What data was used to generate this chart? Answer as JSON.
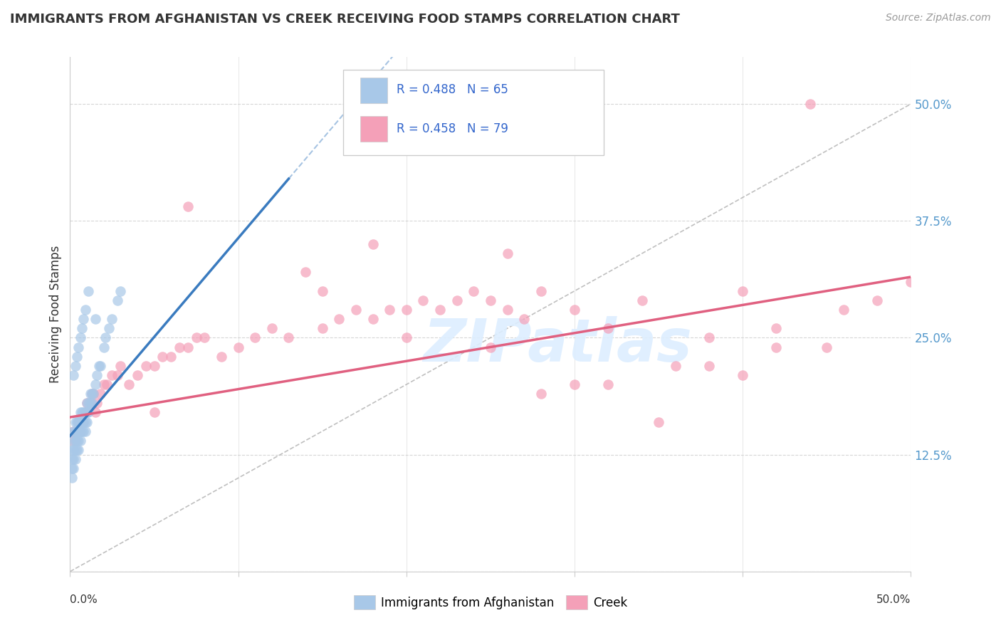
{
  "title": "IMMIGRANTS FROM AFGHANISTAN VS CREEK RECEIVING FOOD STAMPS CORRELATION CHART",
  "source": "Source: ZipAtlas.com",
  "ylabel": "Receiving Food Stamps",
  "yticks": [
    0.0,
    0.125,
    0.25,
    0.375,
    0.5
  ],
  "ytick_labels": [
    "",
    "12.5%",
    "25.0%",
    "37.5%",
    "50.0%"
  ],
  "xlim": [
    0.0,
    0.5
  ],
  "ylim": [
    0.0,
    0.55
  ],
  "blue_color": "#a8c8e8",
  "pink_color": "#f4a0b8",
  "blue_line_color": "#3a7bbf",
  "pink_line_color": "#e06080",
  "watermark_color": "#d8e8f0",
  "grid_color": "#cccccc",
  "tick_label_color": "#5599cc",
  "blue_x": [
    0.001,
    0.001,
    0.001,
    0.001,
    0.002,
    0.002,
    0.002,
    0.002,
    0.002,
    0.003,
    0.003,
    0.003,
    0.003,
    0.003,
    0.004,
    0.004,
    0.004,
    0.004,
    0.005,
    0.005,
    0.005,
    0.005,
    0.006,
    0.006,
    0.006,
    0.006,
    0.007,
    0.007,
    0.007,
    0.008,
    0.008,
    0.008,
    0.009,
    0.009,
    0.009,
    0.01,
    0.01,
    0.01,
    0.011,
    0.011,
    0.012,
    0.012,
    0.013,
    0.013,
    0.014,
    0.015,
    0.016,
    0.017,
    0.018,
    0.02,
    0.021,
    0.023,
    0.025,
    0.028,
    0.03,
    0.002,
    0.003,
    0.004,
    0.005,
    0.006,
    0.007,
    0.008,
    0.009,
    0.011,
    0.015
  ],
  "blue_y": [
    0.1,
    0.11,
    0.12,
    0.13,
    0.11,
    0.12,
    0.13,
    0.14,
    0.15,
    0.12,
    0.13,
    0.14,
    0.15,
    0.16,
    0.13,
    0.14,
    0.15,
    0.16,
    0.13,
    0.14,
    0.15,
    0.16,
    0.14,
    0.15,
    0.16,
    0.17,
    0.15,
    0.16,
    0.17,
    0.15,
    0.16,
    0.17,
    0.15,
    0.16,
    0.17,
    0.16,
    0.17,
    0.18,
    0.17,
    0.18,
    0.18,
    0.19,
    0.18,
    0.19,
    0.19,
    0.2,
    0.21,
    0.22,
    0.22,
    0.24,
    0.25,
    0.26,
    0.27,
    0.29,
    0.3,
    0.21,
    0.22,
    0.23,
    0.24,
    0.25,
    0.26,
    0.27,
    0.28,
    0.3,
    0.27
  ],
  "pink_x": [
    0.001,
    0.002,
    0.003,
    0.004,
    0.005,
    0.005,
    0.006,
    0.007,
    0.008,
    0.009,
    0.01,
    0.01,
    0.012,
    0.013,
    0.014,
    0.015,
    0.016,
    0.018,
    0.02,
    0.022,
    0.025,
    0.028,
    0.03,
    0.035,
    0.04,
    0.045,
    0.05,
    0.055,
    0.06,
    0.065,
    0.07,
    0.075,
    0.08,
    0.09,
    0.1,
    0.11,
    0.12,
    0.13,
    0.14,
    0.15,
    0.16,
    0.17,
    0.18,
    0.19,
    0.2,
    0.21,
    0.22,
    0.23,
    0.24,
    0.25,
    0.26,
    0.27,
    0.28,
    0.3,
    0.32,
    0.34,
    0.36,
    0.38,
    0.4,
    0.42,
    0.44,
    0.46,
    0.48,
    0.5,
    0.15,
    0.2,
    0.35,
    0.3,
    0.25,
    0.4,
    0.45,
    0.38,
    0.42,
    0.28,
    0.32,
    0.26,
    0.18,
    0.05,
    0.07
  ],
  "pink_y": [
    0.14,
    0.15,
    0.14,
    0.15,
    0.15,
    0.16,
    0.15,
    0.16,
    0.16,
    0.17,
    0.17,
    0.18,
    0.18,
    0.19,
    0.19,
    0.17,
    0.18,
    0.19,
    0.2,
    0.2,
    0.21,
    0.21,
    0.22,
    0.2,
    0.21,
    0.22,
    0.22,
    0.23,
    0.23,
    0.24,
    0.24,
    0.25,
    0.25,
    0.23,
    0.24,
    0.25,
    0.26,
    0.25,
    0.32,
    0.26,
    0.27,
    0.28,
    0.27,
    0.28,
    0.28,
    0.29,
    0.28,
    0.29,
    0.3,
    0.29,
    0.28,
    0.27,
    0.3,
    0.28,
    0.26,
    0.29,
    0.22,
    0.25,
    0.3,
    0.26,
    0.5,
    0.28,
    0.29,
    0.31,
    0.3,
    0.25,
    0.16,
    0.2,
    0.24,
    0.21,
    0.24,
    0.22,
    0.24,
    0.19,
    0.2,
    0.34,
    0.35,
    0.17,
    0.39
  ],
  "blue_line_x0": 0.0,
  "blue_line_x1": 0.13,
  "blue_line_y0": 0.145,
  "blue_line_y1": 0.42,
  "pink_line_x0": 0.0,
  "pink_line_x1": 0.5,
  "pink_line_y0": 0.165,
  "pink_line_y1": 0.315
}
